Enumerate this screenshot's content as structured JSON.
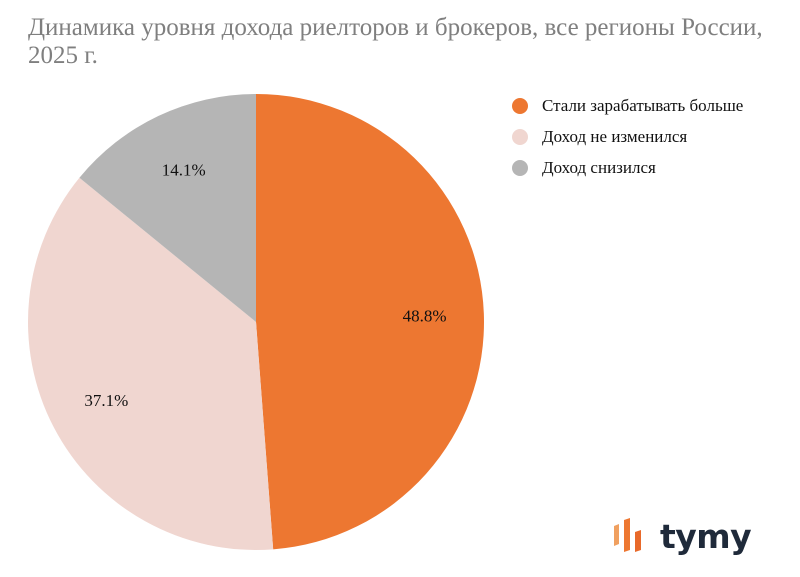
{
  "chart_data": {
    "type": "pie",
    "title": "Динамика уровня дохода риелторов и брокеров, все регионы России, 2025 г.",
    "start_angle": "top",
    "direction": "clockwise",
    "legend_position": "right",
    "slices": [
      {
        "name": "Стали зарабатывать больше",
        "value": 48.8,
        "label": "48.8%",
        "color": "#ED7731"
      },
      {
        "name": "Доход не изменился",
        "value": 37.1,
        "label": "37.1%",
        "color": "#F0D6D0"
      },
      {
        "name": "Доход снизился",
        "value": 14.1,
        "label": "14.1%",
        "color": "#B5B5B5"
      }
    ]
  },
  "logo": {
    "text": "tymy",
    "colors": [
      "#ED7731",
      "#1F2A3A"
    ]
  }
}
